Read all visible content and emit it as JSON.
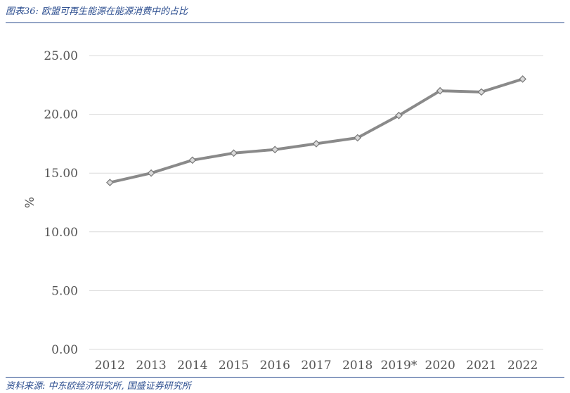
{
  "figure_title": "图表36: 欧盟可再生能源在能源消费中的占比",
  "source_note": "资料来源: 中东欧经济研究所, 国盛证券研究所",
  "colors": {
    "line": "#8a8a8a",
    "marker_fill": "#d9d9d9",
    "grid": "#d9d9d9",
    "frame_text": "#2b4d8f"
  },
  "chart_data": {
    "type": "line",
    "title": "",
    "xlabel": "",
    "ylabel": "%",
    "categories": [
      "2012",
      "2013",
      "2014",
      "2015",
      "2016",
      "2017",
      "2018",
      "2019*",
      "2020",
      "2021",
      "2022"
    ],
    "series": [
      {
        "values": [
          14.2,
          15.0,
          16.1,
          16.7,
          17.0,
          17.5,
          18.0,
          19.9,
          22.0,
          21.9,
          23.0
        ]
      }
    ],
    "ylim": [
      0,
      25
    ],
    "yticks": [
      "0.00",
      "5.00",
      "10.00",
      "15.00",
      "20.00",
      "25.00"
    ],
    "grid": true,
    "marker": "diamond"
  }
}
